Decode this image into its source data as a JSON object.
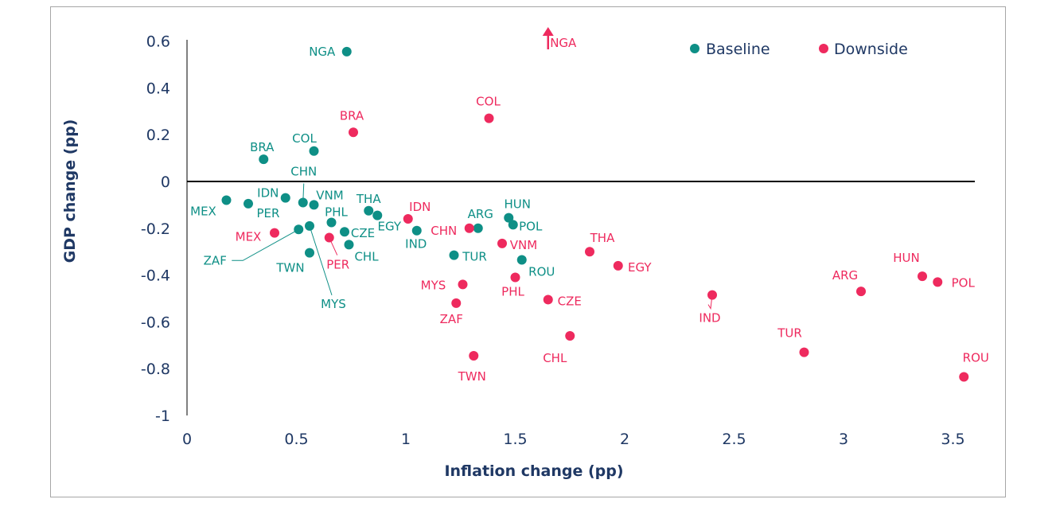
{
  "chart_data": {
    "type": "scatter",
    "xlabel": "Inflation change (pp)",
    "ylabel": "GDP change (pp)",
    "xlim": [
      0,
      3.6
    ],
    "ylim": [
      -1,
      0.6
    ],
    "xticks": [
      "0",
      "0.5",
      "1",
      "1.5",
      "2",
      "2.5",
      "3",
      "3.5"
    ],
    "yticks": [
      "0.6",
      "0.4",
      "0.2",
      "0",
      "-0.2",
      "-0.4",
      "-0.6",
      "-0.8",
      "-1"
    ],
    "grid": false,
    "legend": "top-right",
    "series": [
      {
        "name": "Baseline",
        "color": "#0e8f86",
        "points": [
          {
            "label": "NGA",
            "x": 0.73,
            "y": 0.555
          },
          {
            "label": "BRA",
            "x": 0.35,
            "y": 0.095
          },
          {
            "label": "COL",
            "x": 0.58,
            "y": 0.13
          },
          {
            "label": "MEX",
            "x": 0.18,
            "y": -0.08
          },
          {
            "label": "PER",
            "x": 0.28,
            "y": -0.095
          },
          {
            "label": "IDN",
            "x": 0.45,
            "y": -0.07
          },
          {
            "label": "CHN",
            "x": 0.53,
            "y": -0.09
          },
          {
            "label": "VNM",
            "x": 0.58,
            "y": -0.1
          },
          {
            "label": "THA",
            "x": 0.83,
            "y": -0.125
          },
          {
            "label": "EGY",
            "x": 0.87,
            "y": -0.145
          },
          {
            "label": "PHL",
            "x": 0.66,
            "y": -0.175
          },
          {
            "label": "CZE",
            "x": 0.72,
            "y": -0.215
          },
          {
            "label": "ZAF",
            "x": 0.51,
            "y": -0.205
          },
          {
            "label": "MYS",
            "x": 0.56,
            "y": -0.19
          },
          {
            "label": "CHL",
            "x": 0.74,
            "y": -0.27
          },
          {
            "label": "TWN",
            "x": 0.56,
            "y": -0.305
          },
          {
            "label": "IND",
            "x": 1.05,
            "y": -0.21
          },
          {
            "label": "ARG",
            "x": 1.33,
            "y": -0.2
          },
          {
            "label": "TUR",
            "x": 1.22,
            "y": -0.315
          },
          {
            "label": "HUN",
            "x": 1.47,
            "y": -0.155
          },
          {
            "label": "POL",
            "x": 1.49,
            "y": -0.185
          },
          {
            "label": "ROU",
            "x": 1.53,
            "y": -0.335
          }
        ]
      },
      {
        "name": "Downside",
        "color": "#ee2a5e",
        "points": [
          {
            "label": "NGA",
            "x": 1.65,
            "y": null,
            "off_scale": "above"
          },
          {
            "label": "BRA",
            "x": 0.76,
            "y": 0.21
          },
          {
            "label": "COL",
            "x": 1.38,
            "y": 0.27
          },
          {
            "label": "MEX",
            "x": 0.4,
            "y": -0.22
          },
          {
            "label": "PER",
            "x": 0.65,
            "y": -0.24
          },
          {
            "label": "IDN",
            "x": 1.01,
            "y": -0.16
          },
          {
            "label": "CHN",
            "x": 1.29,
            "y": -0.2
          },
          {
            "label": "VNM",
            "x": 1.44,
            "y": -0.265
          },
          {
            "label": "MYS",
            "x": 1.26,
            "y": -0.44
          },
          {
            "label": "ZAF",
            "x": 1.23,
            "y": -0.52
          },
          {
            "label": "TWN",
            "x": 1.31,
            "y": -0.745
          },
          {
            "label": "PHL",
            "x": 1.5,
            "y": -0.41
          },
          {
            "label": "CZE",
            "x": 1.65,
            "y": -0.505
          },
          {
            "label": "CHL",
            "x": 1.75,
            "y": -0.66
          },
          {
            "label": "THA",
            "x": 1.84,
            "y": -0.3
          },
          {
            "label": "EGY",
            "x": 1.97,
            "y": -0.36
          },
          {
            "label": "IND",
            "x": 2.4,
            "y": -0.485
          },
          {
            "label": "TUR",
            "x": 2.82,
            "y": -0.73
          },
          {
            "label": "ARG",
            "x": 3.08,
            "y": -0.47
          },
          {
            "label": "HUN",
            "x": 3.36,
            "y": -0.405
          },
          {
            "label": "POL",
            "x": 3.43,
            "y": -0.43
          },
          {
            "label": "ROU",
            "x": 3.55,
            "y": -0.835
          }
        ]
      }
    ]
  }
}
